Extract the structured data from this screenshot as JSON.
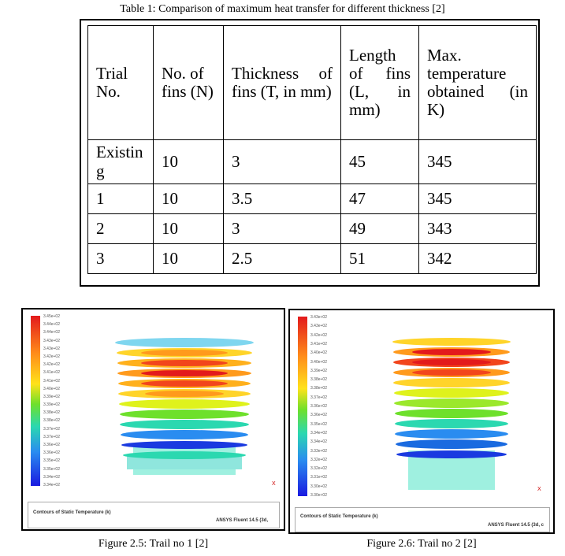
{
  "table_caption": "Table 1: Comparison of maximum heat transfer for different thickness [2]",
  "table": {
    "headers": [
      "Trial No.",
      "No. of fins (N)",
      "Thickness of fins (T, in mm)",
      "Length of fins (L, in mm)",
      "Max. temperature obtained (in K)"
    ],
    "rows": [
      [
        "Existing",
        "10",
        "3",
        "45",
        "345"
      ],
      [
        "1",
        "10",
        "3.5",
        "47",
        "345"
      ],
      [
        "2",
        "10",
        "3",
        "49",
        "343"
      ],
      [
        "3",
        "10",
        "2.5",
        "51",
        "342"
      ]
    ]
  },
  "figures": [
    {
      "caption": "Figure 2.5: Trail no 1 [2]",
      "legend_label": "Contours of Static Temperature (k)",
      "software_label": "ANSYS Fluent 14.5 (3d,",
      "axis_label": "X",
      "legend_ticks": [
        "3.45e+02",
        "3.44e+02",
        "3.44e+02",
        "3.43e+02",
        "3.43e+02",
        "3.42e+02",
        "3.42e+02",
        "3.41e+02",
        "3.41e+02",
        "3.40e+02",
        "3.39e+02",
        "3.39e+02",
        "3.38e+02",
        "3.38e+02",
        "3.37e+02",
        "3.37e+02",
        "3.36e+02",
        "3.36e+02",
        "3.35e+02",
        "3.35e+02",
        "3.34e+02",
        "3.34e+02"
      ]
    },
    {
      "caption": "Figure 2.6: Trail no 2 [2]",
      "legend_label": "Contours of Static Temperature (k)",
      "software_label": "ANSYS Fluent 14.5 (3d, c",
      "axis_label": "X",
      "legend_ticks": [
        "3.43e+02",
        "3.43e+02",
        "3.42e+02",
        "3.41e+02",
        "3.40e+02",
        "3.40e+02",
        "3.39e+02",
        "3.38e+02",
        "3.38e+02",
        "3.37e+02",
        "3.36e+02",
        "3.36e+02",
        "3.35e+02",
        "3.34e+02",
        "3.34e+02",
        "3.33e+02",
        "3.32e+02",
        "3.32e+02",
        "3.31e+02",
        "3.30e+02",
        "3.30e+02"
      ]
    }
  ]
}
